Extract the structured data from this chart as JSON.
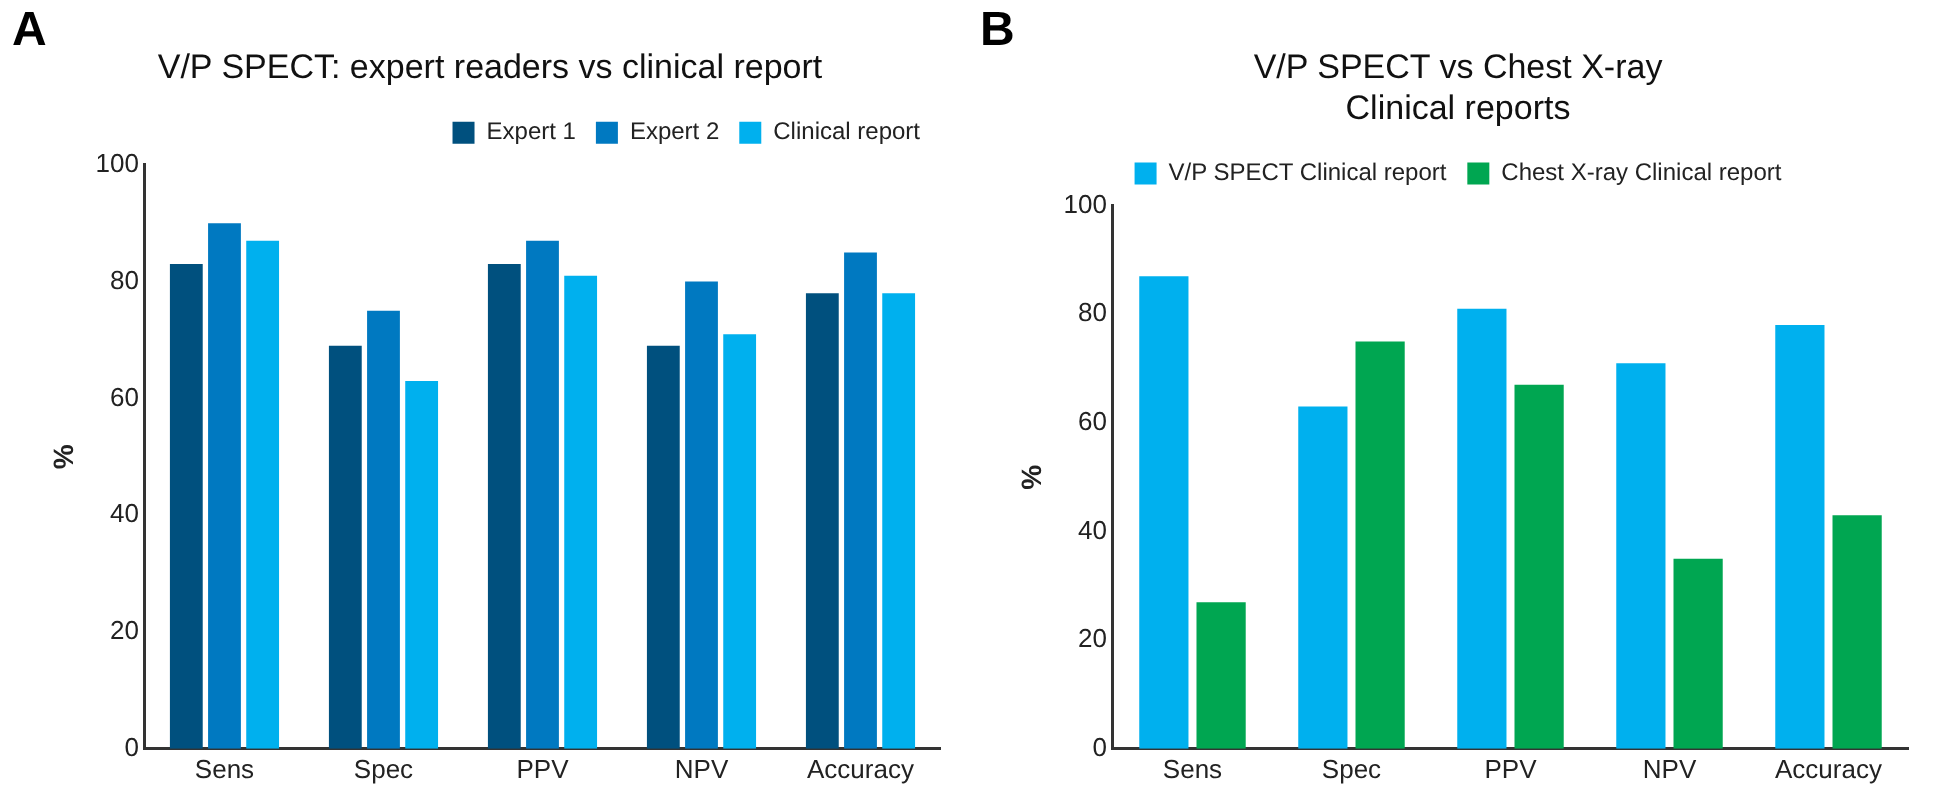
{
  "chart_data": [
    {
      "type": "bar",
      "title": "V/P SPECT: expert readers vs clinical report",
      "ylabel": "%",
      "annotations": [
        "A"
      ],
      "categories": [
        "Sens",
        "Spec",
        "PPV",
        "NPV",
        "Accuracy"
      ],
      "series": [
        {
          "name": "Expert 1",
          "color": "#00507e",
          "values": [
            83,
            69,
            83,
            69,
            78
          ]
        },
        {
          "name": "Expert 2",
          "color": "#0079c1",
          "values": [
            90,
            75,
            87,
            80,
            85
          ]
        },
        {
          "name": "Clinical report",
          "color": "#00b0ee",
          "values": [
            87,
            63,
            81,
            71,
            78
          ]
        }
      ],
      "ylim": [
        0,
        100
      ],
      "yticks": [
        0,
        20,
        40,
        60,
        80,
        100
      ],
      "grid": false,
      "legend": "top right"
    },
    {
      "type": "bar",
      "title": "V/P SPECT vs Chest X-ray\nClinical reports",
      "ylabel": "%",
      "annotations": [
        "B"
      ],
      "categories": [
        "Sens",
        "Spec",
        "PPV",
        "NPV",
        "Accuracy"
      ],
      "series": [
        {
          "name": "V/P SPECT Clinical report",
          "color": "#00b0ee",
          "values": [
            87,
            63,
            81,
            71,
            78
          ]
        },
        {
          "name": "Chest X-ray Clinical report",
          "color": "#00a651",
          "values": [
            27,
            75,
            67,
            35,
            43
          ]
        }
      ],
      "ylim": [
        0,
        100
      ],
      "yticks": [
        0,
        20,
        40,
        60,
        80,
        100
      ],
      "grid": false,
      "legend": "top"
    }
  ]
}
